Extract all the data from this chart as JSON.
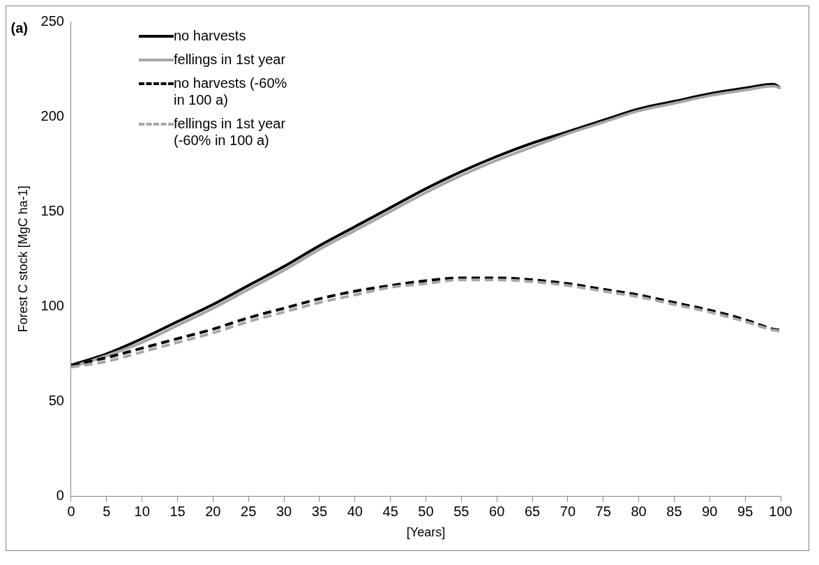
{
  "chart_data": {
    "type": "line",
    "xlabel": "[Years]",
    "ylabel": "Forest C stock [MgC ha-1]",
    "annotations": [
      "(a)"
    ],
    "x": [
      0,
      5,
      10,
      15,
      20,
      25,
      30,
      35,
      40,
      45,
      50,
      55,
      60,
      65,
      70,
      75,
      80,
      85,
      90,
      95,
      99,
      100
    ],
    "xlim": [
      0,
      100
    ],
    "xticks": [
      0,
      5,
      10,
      15,
      20,
      25,
      30,
      35,
      40,
      45,
      50,
      55,
      60,
      65,
      70,
      75,
      80,
      85,
      90,
      95,
      100
    ],
    "ylim": [
      0,
      250
    ],
    "yticks": [
      0,
      50,
      100,
      150,
      200,
      250
    ],
    "grid": false,
    "legend": "top left",
    "marker": "none",
    "series": [
      {
        "name": "no harvests",
        "color": "#000000",
        "line_style": "solid",
        "values": [
          69,
          75,
          83,
          92,
          101,
          111,
          121,
          132,
          142,
          152,
          162,
          171,
          179,
          186,
          192,
          198,
          204,
          208,
          212,
          215,
          217,
          215
        ]
      },
      {
        "name": "fellings in 1st year",
        "color": "#a6a6a6",
        "line_style": "solid",
        "values": [
          68,
          74,
          81,
          90,
          99,
          109,
          119,
          130,
          140,
          150,
          160,
          169,
          177,
          184,
          191,
          197,
          203,
          207,
          211,
          214,
          216,
          215
        ]
      },
      {
        "name": "no harvests (-60% in 100 a)",
        "color": "#000000",
        "line_style": "dashed",
        "values": [
          69,
          73,
          78,
          83,
          88,
          94,
          99,
          104,
          108,
          111,
          113.5,
          115,
          115,
          114,
          112,
          109,
          106,
          102,
          98,
          93,
          88,
          87.5
        ]
      },
      {
        "name": "fellings in 1st year (-60% in 100 a)",
        "color": "#a6a6a6",
        "line_style": "dashed",
        "values": [
          68,
          71,
          76,
          81,
          86,
          92,
          97,
          102,
          106,
          110,
          112,
          114,
          114,
          113,
          111,
          108,
          105,
          101,
          97,
          92,
          87.5,
          87
        ]
      }
    ]
  }
}
